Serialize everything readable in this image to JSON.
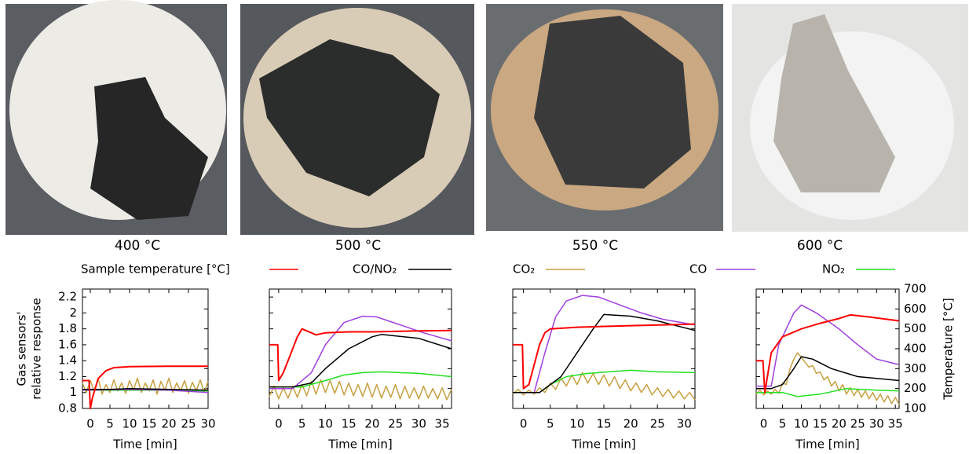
{
  "photo_captions": [
    "400 °C",
    "500 °C",
    "550 °C",
    "600 °C"
  ],
  "chart_data": [
    {
      "type": "line",
      "ylabel": [
        "Gas sensors'",
        "relative response"
      ],
      "xlabel": "Time [min]",
      "xlim": [
        -2,
        30
      ],
      "xticks": [
        0,
        5,
        10,
        15,
        20,
        25,
        30
      ],
      "ylim": [
        0.8,
        2.3
      ],
      "yticks": [
        0.8,
        1,
        1.2,
        1.4,
        1.6,
        1.8,
        2,
        2.2
      ],
      "y2lim": [
        100,
        700
      ],
      "y2ticks": [
        100,
        200,
        300,
        400,
        500,
        600,
        700
      ],
      "series": [
        {
          "name": "Sample temperature [°C]",
          "color": "#ff0000",
          "axis": "y2",
          "x": [
            -2,
            -0.3,
            0,
            0.5,
            2,
            4,
            6,
            10,
            20,
            30
          ],
          "values": [
            240,
            240,
            100,
            150,
            250,
            290,
            305,
            310,
            312,
            312
          ]
        },
        {
          "name": "CO/NO₂",
          "color": "#000000",
          "x": [
            -2,
            5,
            10,
            20,
            30
          ],
          "values": [
            1.04,
            1.04,
            1.05,
            1.04,
            1.03
          ]
        },
        {
          "name": "CO₂",
          "color": "#c8a040",
          "x": [
            -2,
            -1,
            0,
            1,
            2,
            3,
            4,
            5,
            6,
            7,
            8,
            9,
            10,
            11,
            12,
            13,
            14,
            15,
            16,
            17,
            18,
            19,
            20,
            21,
            22,
            23,
            24,
            25,
            26,
            27,
            28,
            29,
            30
          ],
          "values": [
            1.12,
            1.0,
            1.15,
            1.02,
            1.18,
            0.98,
            1.1,
            1.0,
            1.16,
            1.02,
            1.12,
            0.99,
            1.15,
            1.03,
            1.18,
            1.0,
            1.12,
            1.02,
            1.16,
            0.98,
            1.14,
            1.03,
            1.18,
            1.0,
            1.12,
            1.02,
            1.15,
            0.99,
            1.13,
            1.02,
            1.16,
            1.0,
            1.14
          ]
        },
        {
          "name": "CO",
          "color": "#a040e0",
          "x": [
            -2,
            10,
            20,
            30
          ],
          "values": [
            1.03,
            1.04,
            1.03,
            1.0
          ]
        },
        {
          "name": "NO₂",
          "color": "#20e020",
          "x": [
            -2,
            10,
            20,
            30
          ],
          "values": [
            1.03,
            1.03,
            1.03,
            1.02
          ]
        }
      ]
    },
    {
      "type": "line",
      "xlabel": "Time [min]",
      "xlim": [
        -2,
        37
      ],
      "xticks": [
        0,
        5,
        10,
        15,
        20,
        25,
        30,
        35
      ],
      "ylim": [
        0.8,
        2.3
      ],
      "yticks": [
        0.8,
        1,
        1.2,
        1.4,
        1.6,
        1.8,
        2,
        2.2
      ],
      "y2lim": [
        100,
        700
      ],
      "y2ticks": [
        100,
        200,
        300,
        400,
        500,
        600,
        700
      ],
      "series": [
        {
          "color": "#ff0000",
          "axis": "y2",
          "x": [
            -2,
            -0.2,
            0,
            1,
            2,
            4,
            5,
            8,
            10,
            15,
            20,
            30,
            37
          ],
          "values": [
            420,
            420,
            240,
            280,
            340,
            460,
            500,
            470,
            480,
            485,
            485,
            490,
            492
          ]
        },
        {
          "color": "#000000",
          "x": [
            -2,
            3,
            7,
            10,
            15,
            20,
            22,
            30,
            37
          ],
          "values": [
            1.07,
            1.07,
            1.12,
            1.3,
            1.55,
            1.7,
            1.73,
            1.68,
            1.55
          ]
        },
        {
          "color": "#c8a040",
          "x": [
            -2,
            -1,
            0,
            1,
            2,
            3,
            4,
            5,
            6,
            7,
            8,
            9,
            10,
            11,
            12,
            13,
            14,
            15,
            16,
            17,
            18,
            19,
            20,
            21,
            22,
            23,
            24,
            25,
            26,
            27,
            28,
            29,
            30,
            31,
            32,
            33,
            34,
            35,
            36,
            37
          ],
          "values": [
            0.95,
            1.08,
            0.92,
            1.06,
            0.93,
            1.08,
            0.94,
            1.1,
            0.96,
            1.14,
            0.98,
            1.16,
            1.0,
            1.15,
            0.99,
            1.14,
            0.97,
            1.12,
            0.96,
            1.1,
            0.95,
            1.12,
            0.94,
            1.1,
            0.93,
            1.08,
            0.94,
            1.1,
            0.92,
            1.08,
            0.93,
            1.06,
            0.92,
            1.08,
            0.93,
            1.05,
            0.92,
            1.06,
            0.91,
            1.04
          ]
        },
        {
          "color": "#a040e0",
          "x": [
            -2,
            3,
            7,
            10,
            14,
            18,
            21,
            26,
            31,
            37
          ],
          "values": [
            1.05,
            1.05,
            1.25,
            1.6,
            1.88,
            1.96,
            1.95,
            1.85,
            1.75,
            1.65
          ]
        },
        {
          "color": "#20e020",
          "x": [
            -2,
            5,
            10,
            14,
            18,
            22,
            30,
            37
          ],
          "values": [
            1.07,
            1.07,
            1.15,
            1.22,
            1.25,
            1.26,
            1.24,
            1.2
          ]
        }
      ]
    },
    {
      "type": "line",
      "xlabel": "Time [min]",
      "xlim": [
        -2,
        32
      ],
      "xticks": [
        0,
        5,
        10,
        15,
        20,
        25,
        30
      ],
      "ylim": [
        0.8,
        2.3
      ],
      "yticks": [
        0.8,
        1,
        1.2,
        1.4,
        1.6,
        1.8,
        2,
        2.2
      ],
      "y2lim": [
        100,
        700
      ],
      "y2ticks": [
        100,
        200,
        300,
        400,
        500,
        600,
        700
      ],
      "series": [
        {
          "color": "#ff0000",
          "axis": "y2",
          "x": [
            -2,
            -0.2,
            0,
            1,
            3,
            4,
            5,
            10,
            20,
            32
          ],
          "values": [
            420,
            420,
            200,
            220,
            420,
            480,
            500,
            508,
            516,
            524
          ]
        },
        {
          "color": "#000000",
          "x": [
            -2,
            3,
            5,
            7,
            10,
            13,
            15,
            20,
            25,
            32
          ],
          "values": [
            1.0,
            1.0,
            1.1,
            1.2,
            1.5,
            1.8,
            1.98,
            1.96,
            1.9,
            1.78
          ]
        },
        {
          "color": "#c8a040",
          "x": [
            -2,
            -1,
            0,
            1,
            2,
            3,
            4,
            5,
            6,
            7,
            8,
            9,
            10,
            11,
            12,
            13,
            14,
            15,
            16,
            17,
            18,
            19,
            20,
            21,
            22,
            23,
            24,
            25,
            26,
            27,
            28,
            29,
            30,
            31,
            32
          ],
          "values": [
            0.98,
            1.04,
            0.97,
            1.03,
            0.98,
            1.06,
            1.0,
            1.12,
            1.04,
            1.18,
            1.08,
            1.22,
            1.1,
            1.25,
            1.12,
            1.24,
            1.1,
            1.22,
            1.08,
            1.2,
            1.05,
            1.16,
            1.02,
            1.12,
            1.0,
            1.1,
            0.97,
            1.06,
            0.95,
            1.04,
            0.93,
            1.02,
            0.92,
            1.0,
            0.91
          ]
        },
        {
          "color": "#a040e0",
          "x": [
            -2,
            2,
            4,
            6,
            8,
            11,
            14,
            18,
            22,
            26,
            32
          ],
          "values": [
            1.0,
            1.0,
            1.5,
            1.95,
            2.15,
            2.22,
            2.2,
            2.1,
            2.0,
            1.92,
            1.85
          ]
        },
        {
          "color": "#20e020",
          "x": [
            -2,
            3,
            5,
            8,
            12,
            16,
            20,
            25,
            32
          ],
          "values": [
            1.0,
            1.0,
            1.1,
            1.2,
            1.24,
            1.26,
            1.28,
            1.26,
            1.25
          ]
        }
      ]
    },
    {
      "type": "line",
      "xlabel": "Time [min]",
      "y2label": "Temperature [°C]",
      "xlim": [
        -2,
        36
      ],
      "xticks": [
        0,
        5,
        10,
        15,
        20,
        25,
        30,
        35
      ],
      "ylim": [
        0.8,
        2.3
      ],
      "yticks": [
        0.8,
        1,
        1.2,
        1.4,
        1.6,
        1.8,
        2,
        2.2
      ],
      "y2lim": [
        100,
        700
      ],
      "y2ticks": [
        100,
        200,
        300,
        400,
        500,
        600,
        700
      ],
      "series": [
        {
          "color": "#ff0000",
          "axis": "y2",
          "x": [
            -2,
            -0.2,
            0.3,
            2,
            5,
            10,
            15,
            20,
            23,
            28,
            36
          ],
          "values": [
            340,
            340,
            180,
            380,
            460,
            500,
            528,
            552,
            570,
            560,
            540
          ]
        },
        {
          "color": "#000000",
          "x": [
            -2,
            2,
            5,
            8,
            10,
            13,
            18,
            25,
            36
          ],
          "values": [
            1.05,
            1.05,
            1.1,
            1.3,
            1.45,
            1.42,
            1.3,
            1.2,
            1.15
          ]
        },
        {
          "color": "#c8a040",
          "x": [
            -2,
            -1,
            0,
            1,
            2,
            3,
            4,
            5,
            6,
            7,
            8,
            9,
            10,
            11,
            12,
            13,
            14,
            15,
            16,
            17,
            18,
            19,
            20,
            21,
            22,
            23,
            24,
            25,
            26,
            27,
            28,
            29,
            30,
            31,
            32,
            33,
            34,
            35,
            36
          ],
          "values": [
            0.98,
            1.03,
            0.97,
            1.02,
            0.98,
            1.04,
            0.99,
            1.12,
            1.1,
            1.3,
            1.42,
            1.5,
            1.44,
            1.38,
            1.32,
            1.34,
            1.24,
            1.26,
            1.16,
            1.2,
            1.08,
            1.14,
            1.02,
            1.1,
            0.98,
            1.06,
            0.96,
            1.04,
            0.94,
            1.02,
            0.92,
            1.0,
            0.9,
            0.98,
            0.88,
            0.96,
            0.86,
            0.94,
            0.85
          ]
        },
        {
          "color": "#a040e0",
          "x": [
            -2,
            2,
            4,
            8,
            10,
            14,
            20,
            25,
            30,
            36
          ],
          "values": [
            1.08,
            1.08,
            1.6,
            2.0,
            2.1,
            2.0,
            1.8,
            1.6,
            1.42,
            1.35
          ]
        },
        {
          "color": "#20e020",
          "x": [
            -2,
            5,
            9,
            15,
            22,
            30,
            36
          ],
          "values": [
            1.0,
            1.0,
            0.95,
            0.98,
            1.05,
            1.03,
            1.02
          ]
        }
      ]
    }
  ]
}
